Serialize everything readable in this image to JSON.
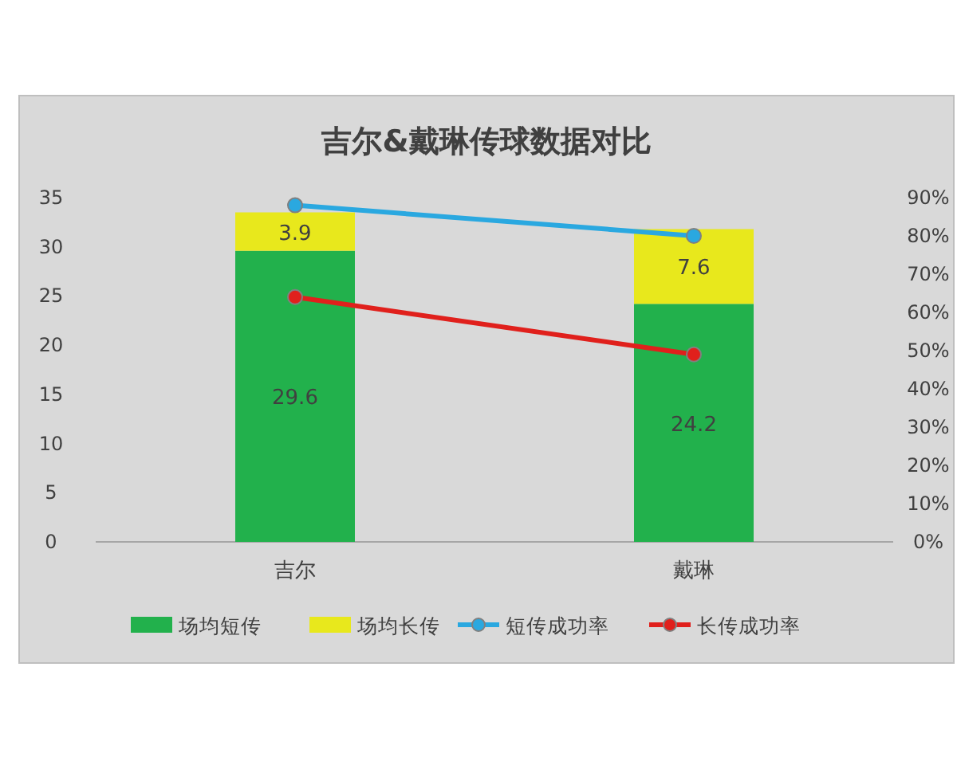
{
  "chart_data": {
    "type": "bar",
    "title": "吉尔&戴琳传球数据对比",
    "categories": [
      "吉尔",
      "戴琳"
    ],
    "stacked": true,
    "series": [
      {
        "name": "场均短传",
        "color": "#22b14c",
        "values": [
          29.6,
          24.2
        ],
        "value_labels": [
          "29.6",
          "24.2"
        ]
      },
      {
        "name": "场均长传",
        "color": "#e8e81c",
        "values": [
          3.9,
          7.6
        ],
        "value_labels": [
          "3.9",
          "7.6"
        ]
      },
      {
        "name": "短传成功率",
        "type": "line",
        "axis": "y2",
        "color": "#2aa8e0",
        "values": [
          88,
          80
        ],
        "marker": "circle"
      },
      {
        "name": "长传成功率",
        "type": "line",
        "axis": "y2",
        "color": "#e0201c",
        "values": [
          64,
          49
        ],
        "marker": "circle"
      }
    ],
    "ylim": [
      0,
      35
    ],
    "yticks": [
      0,
      5,
      10,
      15,
      20,
      25,
      30,
      35
    ],
    "y2lim": [
      0,
      90
    ],
    "y2ticks": [
      {
        "value": 0,
        "label": "0%"
      },
      {
        "value": 10,
        "label": "10%"
      },
      {
        "value": 20,
        "label": "20%"
      },
      {
        "value": 30,
        "label": "30%"
      },
      {
        "value": 40,
        "label": "40%"
      },
      {
        "value": 50,
        "label": "50%"
      },
      {
        "value": 60,
        "label": "60%"
      },
      {
        "value": 70,
        "label": "70%"
      },
      {
        "value": 80,
        "label": "80%"
      },
      {
        "value": 90,
        "label": "90%"
      }
    ],
    "legend": "bottom"
  }
}
